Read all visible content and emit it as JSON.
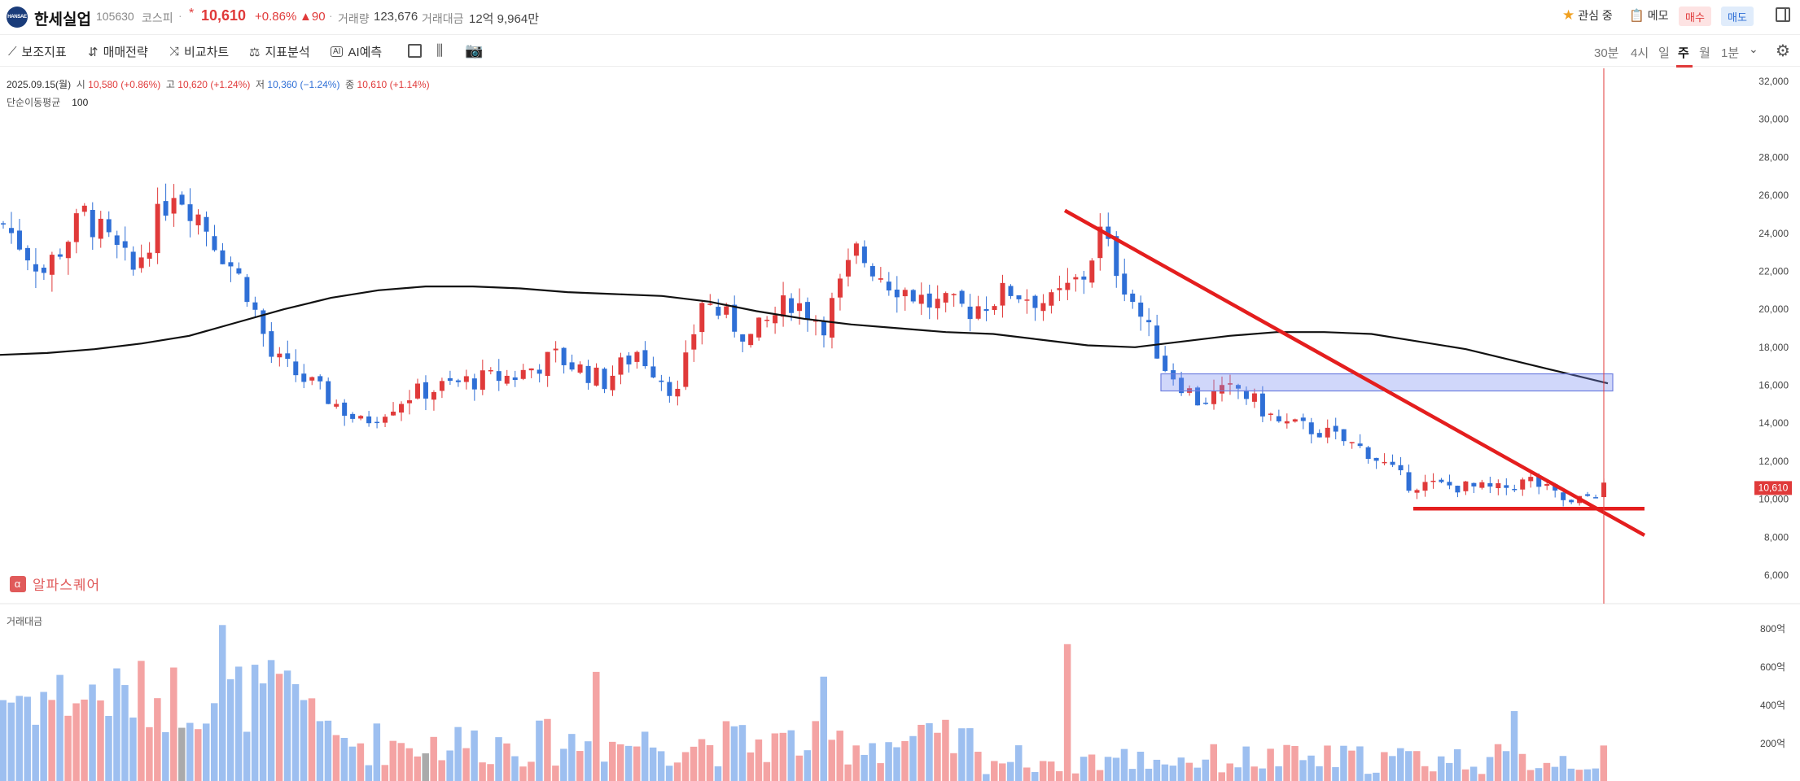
{
  "header": {
    "logo_text": "HANSAE",
    "stock_name": "한세실업",
    "stock_code": "105630",
    "market": "코스피",
    "asterisk": "*",
    "price": "10,610",
    "change_pct": "+0.86%",
    "change_abs": "▲90",
    "volume_label": "거래량",
    "volume_value": "123,676",
    "amount_label": "거래대금",
    "amount_value": "12억 9,964만",
    "watch_label": "관심 중",
    "memo_label": "메모",
    "buy_label": "매수",
    "sell_label": "매도"
  },
  "toolbar": {
    "items": [
      "보조지표",
      "매매전략",
      "비교차트",
      "지표분석",
      "AI예측"
    ],
    "periods": [
      "30분",
      "4시",
      "일",
      "주",
      "월",
      "1분"
    ],
    "active_period": "주"
  },
  "info": {
    "date": "2025.09.15(월)",
    "open_label": "시",
    "open": "10,580 (+0.86%)",
    "high_label": "고",
    "high": "10,620 (+1.24%)",
    "low_label": "저",
    "low": "10,360 (−1.24%)",
    "close_label": "종",
    "close": "10,610 (+1.14%)",
    "ma_label": "단순이동평균",
    "ma_period": "100"
  },
  "watermark": "알파스퀘어",
  "volume_panel_title": "거래대금",
  "colors": {
    "up": "#e03a3a",
    "down": "#2f6fd6",
    "vol_up": "#f4a3a3",
    "vol_down": "#9dbff0",
    "ma": "#111111",
    "trend": "#e41e1e"
  },
  "chart_data": {
    "type": "candlestick",
    "price_axis": {
      "ylim": [
        5000,
        32600
      ],
      "ticks": [
        "32,000",
        "30,000",
        "28,000",
        "26,000",
        "24,000",
        "22,000",
        "20,000",
        "18,000",
        "16,000",
        "14,000",
        "12,000",
        "10,000",
        "8,000",
        "6,000"
      ]
    },
    "volume_axis": {
      "ylim": [
        0,
        820
      ],
      "ticks": [
        "800억",
        "600억",
        "400억",
        "200억"
      ]
    },
    "current_price_tag": "10,610",
    "candles_ohlc_sample": [
      [
        24500,
        25500,
        22500,
        23000
      ],
      [
        23000,
        24000,
        20500,
        21200
      ],
      [
        21200,
        23500,
        20800,
        23000
      ],
      [
        23000,
        25500,
        22800,
        25200
      ],
      [
        25200,
        27000,
        24000,
        24800
      ],
      [
        24800,
        25800,
        21500,
        22000
      ],
      [
        22000,
        23000,
        20800,
        21500
      ],
      [
        21500,
        22500,
        20700,
        22200
      ],
      [
        22200,
        24500,
        22000,
        24000
      ],
      [
        24000,
        26500,
        23500,
        26000
      ]
    ],
    "moving_average_100": [
      17600,
      17700,
      17900,
      18200,
      18600,
      19300,
      20000,
      20600,
      21000,
      21200,
      21200,
      21100,
      20900,
      20800,
      20700,
      20400,
      19900,
      19500,
      19200,
      19000,
      18800,
      18700,
      18400,
      18100,
      18000,
      18300,
      18600,
      18800,
      18800,
      18700,
      18300,
      17900,
      17300,
      16700,
      16100
    ],
    "drawings": {
      "descending_trendline": {
        "from": [
          25200
        ],
        "to": [
          8100
        ]
      },
      "support_line": 9500,
      "resistance_box": [
        15700,
        16600
      ]
    }
  }
}
